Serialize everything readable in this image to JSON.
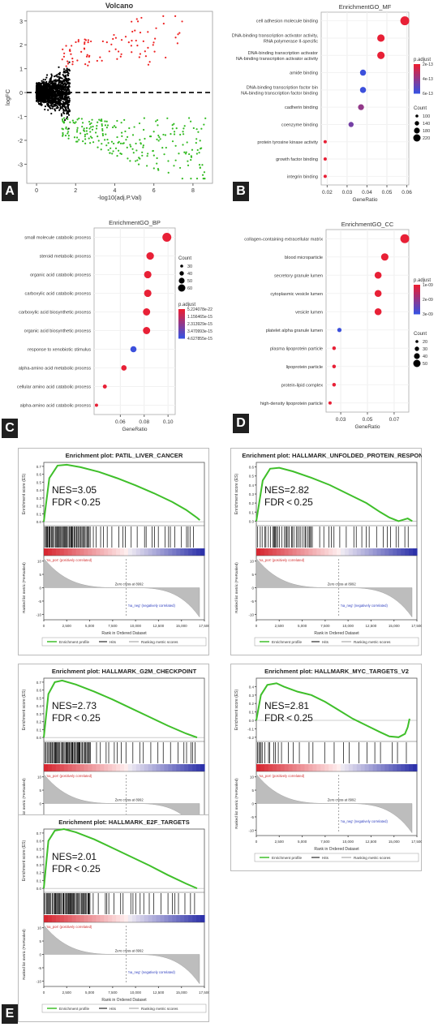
{
  "figure": {
    "panel_letters": [
      "A",
      "B",
      "C",
      "D",
      "E"
    ]
  },
  "chart_data": [
    {
      "id": "volcano",
      "type": "scatter",
      "title": "Volcano",
      "xlabel": "-log10(adj.P.Val)",
      "ylabel": "logFC",
      "xlim": [
        -0.5,
        9
      ],
      "ylim": [
        -3.8,
        3.4
      ],
      "xticks": [
        "0",
        "2",
        "4",
        "6",
        "8"
      ],
      "yticks": [
        "-3",
        "-2",
        "-1",
        "0",
        "1",
        "2",
        "3"
      ],
      "threshold_line": 0,
      "groups": [
        {
          "color": "#ee2222",
          "description": "up",
          "count": 90
        },
        {
          "color": "#000000",
          "description": "not significant",
          "count": 1800
        },
        {
          "color": "#33bb22",
          "description": "down",
          "count": 240
        }
      ]
    },
    {
      "id": "go_mf",
      "type": "scatter",
      "title": "EnrichmentGO_MF",
      "xlabel": "GeneRatio",
      "xlim": [
        0.017,
        0.061
      ],
      "xticks": [
        "0.02",
        "0.03",
        "0.04",
        "0.05",
        "0.06"
      ],
      "terms": [
        "cell adhesion molecule binding",
        "DNA-binding transcription activator activity, RNA polymerase II-specific",
        "DNA-binding transcription activator activity",
        "amide binding",
        "DNA-binding transcription factor binding",
        "cadherin binding",
        "coenzyme binding",
        "protein tyrosine kinase activity",
        "growth factor binding",
        "integrin binding"
      ],
      "gene_ratio": [
        0.059,
        0.047,
        0.047,
        0.038,
        0.038,
        0.037,
        0.032,
        0.019,
        0.019,
        0.019
      ],
      "count": [
        225,
        185,
        185,
        150,
        150,
        145,
        125,
        75,
        75,
        75
      ],
      "p_adjust": [
        1e-15,
        2e-15,
        2e-15,
        6e-13,
        6e-13,
        3e-13,
        4e-13,
        1e-15,
        1e-15,
        1e-15
      ],
      "size_legend": {
        "title": "Count",
        "values": [
          "100",
          "140",
          "180",
          "220"
        ]
      },
      "color_legend": {
        "title": "p.adjust",
        "labels": [
          "2e-13",
          "4e-13",
          "6e-13"
        ]
      }
    },
    {
      "id": "go_bp",
      "type": "scatter",
      "title": "EnrichmentGO_BP",
      "xlabel": "GeneRatio",
      "xlim": [
        0.038,
        0.106
      ],
      "xticks": [
        "0.06",
        "0.08",
        "0.10"
      ],
      "terms": [
        "small molecule catabolic process",
        "steroid metabolic process",
        "organic acid catabolic process",
        "carboxylic acid catabolic process",
        "carboxylic acid biosynthetic process",
        "organic acid biosynthetic process",
        "response to xenobiotic stimulus",
        "alpha-amino acid metabolic process",
        "cellular amino acid catabolic process",
        "alpha-amino acid catabolic process"
      ],
      "gene_ratio": [
        0.099,
        0.085,
        0.083,
        0.083,
        0.082,
        0.082,
        0.071,
        0.063,
        0.047,
        0.04
      ],
      "count": [
        62,
        53,
        52,
        52,
        51,
        51,
        44,
        39,
        30,
        25
      ],
      "p_adjust": [
        5.2e-22,
        1e-18,
        1e-18,
        1e-18,
        1e-18,
        1e-18,
        4.6e-15,
        1e-18,
        1e-18,
        1e-18
      ],
      "size_legend": {
        "title": "Count",
        "values": [
          "30",
          "40",
          "50",
          "60"
        ]
      },
      "color_legend": {
        "title": "p.adjust",
        "labels": [
          "5.224078e-22",
          "1.156465e-15",
          "2.313929e-15",
          "3.470993e-15",
          "4.627855e-15"
        ]
      }
    },
    {
      "id": "go_cc",
      "type": "scatter",
      "title": "EnrichmentGO_CC",
      "xlabel": "GeneRatio",
      "xlim": [
        0.019,
        0.081
      ],
      "xticks": [
        "0.03",
        "0.05",
        "0.07"
      ],
      "terms": [
        "collagen-containing extracellular matrix",
        "blood microparticle",
        "secretory granule lumen",
        "cytoplasmic vesicle lumen",
        "vesicle lumen",
        "platelet alpha granule lumen",
        "plasma lipoprotein particle",
        "lipoprotein particle",
        "protein-lipid complex",
        "high-density lipoprotein particle"
      ],
      "gene_ratio": [
        0.078,
        0.063,
        0.058,
        0.058,
        0.058,
        0.029,
        0.025,
        0.025,
        0.025,
        0.022
      ],
      "count": [
        58,
        46,
        43,
        43,
        43,
        22,
        17,
        17,
        17,
        14
      ],
      "p_adjust": [
        1e-12,
        1e-12,
        1e-12,
        1e-12,
        1e-12,
        3e-09,
        1e-12,
        1e-12,
        1e-12,
        1e-12
      ],
      "size_legend": {
        "title": "Count",
        "values": [
          "20",
          "30",
          "40",
          "50"
        ]
      },
      "color_legend": {
        "title": "p.adjust",
        "labels": [
          "1e-09",
          "2e-09",
          "3e-09"
        ]
      }
    },
    {
      "id": "gsea_patil",
      "type": "line",
      "title": "Enrichment plot: PATIL_LIVER_CANCER",
      "ylabel_top": "Enrichment score (ES)",
      "ylabel_bottom": "Ranked list metric (PreRanked)",
      "xlabel": "Rank in Ordered Dataset",
      "xlim": [
        0,
        17500
      ],
      "es_ylim": [
        -0.05,
        0.75
      ],
      "es_yticks": [
        "0.7",
        "0.6",
        "0.5",
        "0.4",
        "0.3",
        "0.2",
        "0.1",
        "0.0"
      ],
      "metric_yticks": [
        "10",
        "5",
        "0",
        "-5",
        "-10"
      ],
      "xticks": [
        "0",
        "2,500",
        "5,000",
        "7,500",
        "10,000",
        "12,500",
        "15,000",
        "17,500"
      ],
      "es_curve": {
        "x": [
          0,
          600,
          1500,
          2500,
          4000,
          6000,
          8000,
          10000,
          12000,
          14000,
          15500,
          16700,
          17000
        ],
        "y": [
          0.0,
          0.55,
          0.71,
          0.72,
          0.69,
          0.63,
          0.55,
          0.46,
          0.36,
          0.25,
          0.15,
          0.05,
          0.02
        ]
      },
      "hits_density": "front",
      "nes": "NES=3.05",
      "fdr": "FDR < 0.25",
      "pos_label": "'na_pos' (positively correlated)",
      "neg_label": "'na_neg' (negatively correlated)",
      "zero_cross": "Zero cross at 8992",
      "legend": [
        "Enrichment profile",
        "Hits",
        "Ranking metric scores"
      ]
    },
    {
      "id": "gsea_upr",
      "type": "line",
      "title": "Enrichment plot: HALLMARK_UNFOLDED_PROTEIN_RESPONSE",
      "ylabel_top": "Enrichment score (ES)",
      "ylabel_bottom": "Ranked list metric (PreRanked)",
      "xlabel": "Rank in Ordered Dataset",
      "xlim": [
        0,
        17500
      ],
      "es_ylim": [
        -0.05,
        0.65
      ],
      "es_yticks": [
        "0.6",
        "0.5",
        "0.4",
        "0.3",
        "0.2",
        "0.1",
        "0.0"
      ],
      "metric_yticks": [
        "10",
        "5",
        "0",
        "-5",
        "-10"
      ],
      "xticks": [
        "0",
        "2,500",
        "5,000",
        "7,500",
        "10,000",
        "12,500",
        "15,000",
        "17,500"
      ],
      "es_curve": {
        "x": [
          0,
          700,
          1500,
          2500,
          4000,
          6000,
          8000,
          10000,
          12000,
          13500,
          14500,
          15500,
          16500,
          17000
        ],
        "y": [
          0.0,
          0.45,
          0.58,
          0.59,
          0.55,
          0.48,
          0.4,
          0.3,
          0.2,
          0.1,
          0.04,
          0.0,
          0.03,
          0.0
        ]
      },
      "hits_density": "spread",
      "nes": "NES=2.82",
      "fdr": "FDR < 0.25",
      "pos_label": "'na_pos' (positively correlated)",
      "neg_label": "'na_neg' (negatively correlated)",
      "zero_cross": "Zero cross at 8992",
      "legend": [
        "Enrichment profile",
        "Hits",
        "Ranking metric scores"
      ]
    },
    {
      "id": "gsea_g2m",
      "type": "line",
      "title": "Enrichment plot: HALLMARK_G2M_CHECKPOINT",
      "ylabel_top": "Enrichment score (ES)",
      "ylabel_bottom": "Ranked list metric (PreRanked)",
      "xlabel": "Rank in Ordered Dataset",
      "xlim": [
        0,
        17500
      ],
      "es_ylim": [
        -0.05,
        0.75
      ],
      "es_yticks": [
        "0.7",
        "0.6",
        "0.5",
        "0.4",
        "0.3",
        "0.2",
        "0.1",
        "0.0"
      ],
      "metric_yticks": [
        "10",
        "5",
        "0",
        "-5",
        "-10"
      ],
      "xticks": [
        "0",
        "2,500",
        "5,000",
        "7,500",
        "10,000",
        "12,500",
        "15,000",
        "17,500"
      ],
      "es_curve": {
        "x": [
          0,
          500,
          1200,
          2000,
          3500,
          5500,
          7500,
          9500,
          11500,
          13500,
          15500,
          16700
        ],
        "y": [
          0.0,
          0.55,
          0.7,
          0.72,
          0.67,
          0.58,
          0.48,
          0.37,
          0.26,
          0.15,
          0.05,
          0.0
        ]
      },
      "hits_density": "front",
      "nes": "NES=2.73",
      "fdr": "FDR < 0.25",
      "pos_label": "'na_pos' (positively correlated)",
      "neg_label": "'na_neg' (negatively correlated)",
      "zero_cross": "Zero cross at 8992",
      "legend": [
        "Enrichment profile",
        "Hits",
        "Ranking metric scores"
      ]
    },
    {
      "id": "gsea_myc",
      "type": "line",
      "title": "Enrichment plot: HALLMARK_MYC_TARGETS_V2",
      "ylabel_top": "Enrichment score (ES)",
      "ylabel_bottom": "Ranked list metric (PreRanked)",
      "xlabel": "Rank in Ordered Dataset",
      "xlim": [
        0,
        17500
      ],
      "es_ylim": [
        -0.25,
        0.5
      ],
      "es_yticks": [
        "0.4",
        "0.3",
        "0.2",
        "0.1",
        "0.0",
        "-0.1",
        "-0.2"
      ],
      "metric_yticks": [
        "10",
        "5",
        "0",
        "-5",
        "-10"
      ],
      "xticks": [
        "0",
        "2,500",
        "5,000",
        "7,500",
        "10,000",
        "12,500",
        "15,000",
        "17,500"
      ],
      "es_curve": {
        "x": [
          0,
          500,
          1200,
          2200,
          3000,
          4500,
          6000,
          7500,
          9000,
          10500,
          12000,
          13500,
          14500,
          15500,
          16200,
          16500,
          16700
        ],
        "y": [
          0.0,
          0.3,
          0.42,
          0.44,
          0.4,
          0.34,
          0.3,
          0.22,
          0.12,
          0.02,
          -0.06,
          -0.14,
          -0.19,
          -0.2,
          -0.16,
          -0.08,
          0.02
        ]
      },
      "hits_density": "sparse",
      "nes": "NES=2.81",
      "fdr": "FDR < 0.25",
      "pos_label": "'na_pos' (positively correlated)",
      "neg_label": "'na_neg' (negatively correlated)",
      "zero_cross": "Zero cross at 8992",
      "legend": [
        "Enrichment profile",
        "Hits",
        "Ranking metric scores"
      ]
    },
    {
      "id": "gsea_e2f",
      "type": "line",
      "title": "Enrichment plot: HALLMARK_E2F_TARGETS",
      "ylabel_top": "Enrichment score (ES)",
      "ylabel_bottom": "Ranked list metric (PreRanked)",
      "xlabel": "Rank in Ordered Dataset",
      "xlim": [
        0,
        17500
      ],
      "es_ylim": [
        -0.05,
        0.75
      ],
      "es_yticks": [
        "0.7",
        "0.6",
        "0.5",
        "0.4",
        "0.3",
        "0.2",
        "0.1",
        "0.0"
      ],
      "metric_yticks": [
        "10",
        "5",
        "0",
        "-5",
        "-10"
      ],
      "xticks": [
        "0",
        "2,500",
        "5,000",
        "7,500",
        "10,000",
        "12,500",
        "15,000",
        "17,500"
      ],
      "es_curve": {
        "x": [
          0,
          500,
          1200,
          2200,
          3500,
          5500,
          7500,
          9500,
          11500,
          13500,
          15500,
          16700
        ],
        "y": [
          0.0,
          0.6,
          0.73,
          0.75,
          0.71,
          0.62,
          0.51,
          0.4,
          0.29,
          0.17,
          0.06,
          0.0
        ]
      },
      "hits_density": "front",
      "nes": "NES=2.01",
      "fdr": "FDR < 0.25",
      "pos_label": "'na_pos' (positively correlated)",
      "neg_label": "'na_neg' (negatively correlated)",
      "zero_cross": "Zero cross at 8992",
      "legend": [
        "Enrichment profile",
        "Hits",
        "Ranking metric scores"
      ]
    }
  ]
}
